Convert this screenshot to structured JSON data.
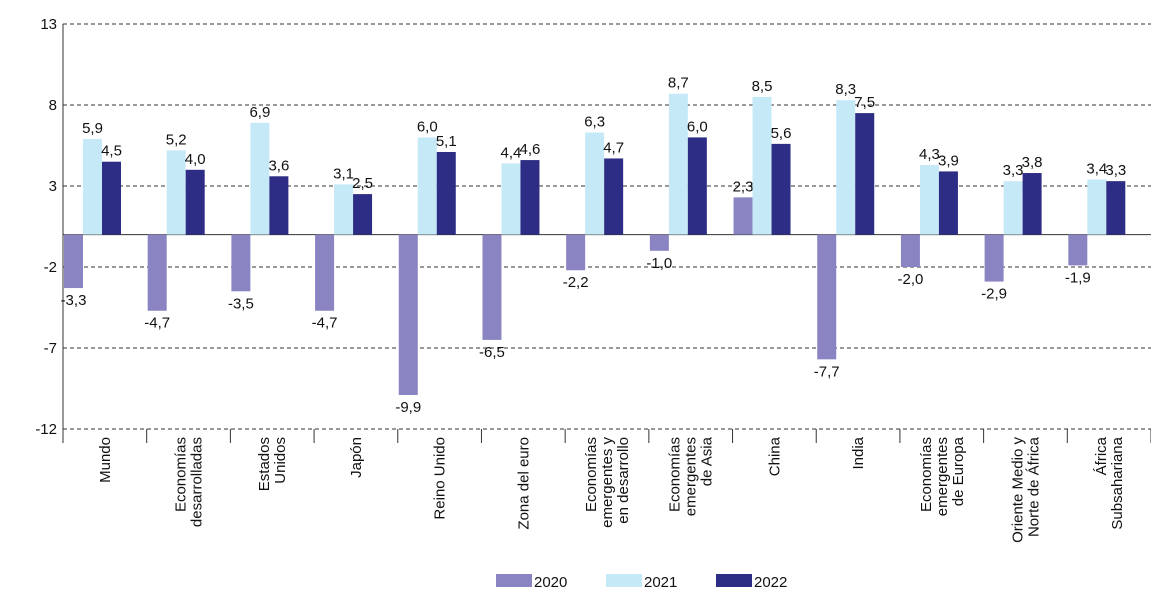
{
  "chart_data": {
    "type": "bar",
    "categories": [
      "Mundo",
      "Economías\ndesarrolladas",
      "Estados\nUnidos",
      "Japón",
      "Reino Unido",
      "Zona del euro",
      "Economías\nemergentes y\nen desarrollo",
      "Economías\nemergentes\nde Asia",
      "China",
      "India",
      "Economías\nemergentes\nde Europa",
      "Oriente Medio y\nNorte de África",
      "África\nSubsahariana"
    ],
    "series": [
      {
        "name": "2020",
        "color": "#8a84c3",
        "values": [
          -3.3,
          -4.7,
          -3.5,
          -4.7,
          -9.9,
          -6.5,
          -2.2,
          -1.0,
          2.3,
          -7.7,
          -2.0,
          -2.9,
          -1.9
        ],
        "value_labels": [
          "-3,3",
          "-4,7",
          "-3,5",
          "-4,7",
          "-9,9",
          "-6,5",
          "-2,2",
          "-1,0",
          "2,3",
          "-7,7",
          "-2,0",
          "-2,9",
          "-1,9"
        ]
      },
      {
        "name": "2021",
        "color": "#c6e9f8",
        "values": [
          5.9,
          5.2,
          6.9,
          3.1,
          6.0,
          4.4,
          6.3,
          8.7,
          8.5,
          8.3,
          4.3,
          3.3,
          3.4
        ],
        "value_labels": [
          "5,9",
          "5,2",
          "6,9",
          "3,1",
          "6,0",
          "4,4",
          "6,3",
          "8,7",
          "8,5",
          "8,3",
          "4,3",
          "3,3",
          "3,4"
        ]
      },
      {
        "name": "2022",
        "color": "#2d2d85",
        "values": [
          4.5,
          4.0,
          3.6,
          2.5,
          5.1,
          4.6,
          4.7,
          6.0,
          5.6,
          7.5,
          3.9,
          3.8,
          3.3
        ],
        "value_labels": [
          "4,5",
          "4,0",
          "3,6",
          "2,5",
          "5,1",
          "4,6",
          "4,7",
          "6,0",
          "5,6",
          "7,5",
          "3,9",
          "3,8",
          "3,3"
        ]
      }
    ],
    "ylim": [
      -12,
      13
    ],
    "yticks": [
      -12,
      -7,
      -2,
      3,
      8,
      13
    ],
    "grid": true
  }
}
